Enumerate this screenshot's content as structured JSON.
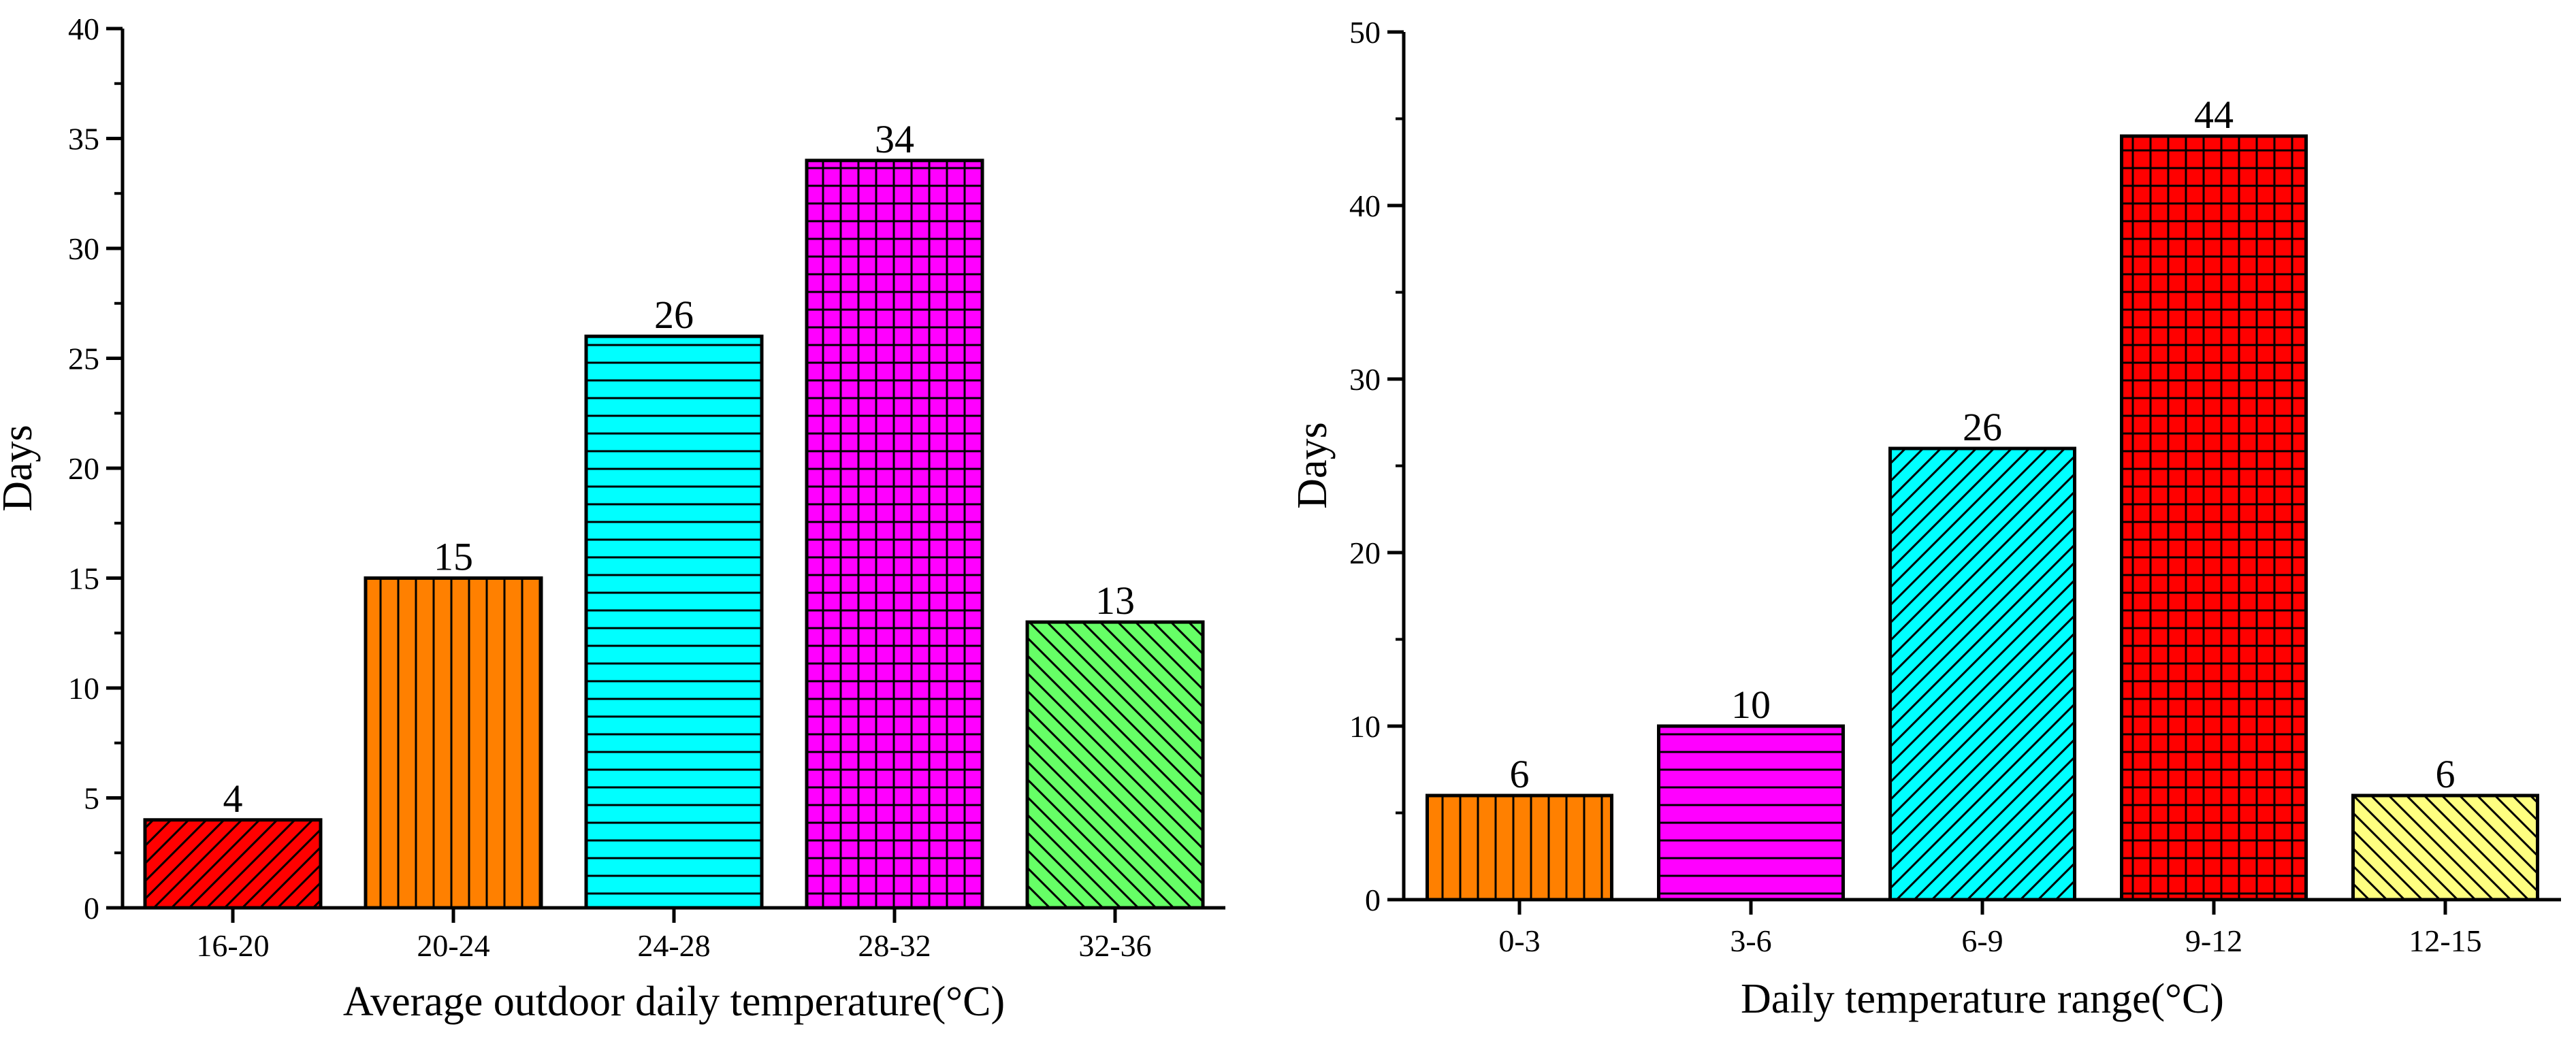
{
  "chart_data": [
    {
      "type": "bar",
      "title": "",
      "xlabel": "Average outdoor daily temperature(°C)",
      "ylabel": "Days",
      "ylim": [
        0,
        40
      ],
      "yticks": [
        0,
        5,
        10,
        15,
        20,
        25,
        30,
        35,
        40
      ],
      "grid": false,
      "categories": [
        "16-20",
        "20-24",
        "24-28",
        "28-32",
        "32-36"
      ],
      "values": [
        4,
        15,
        26,
        34,
        13
      ],
      "colors": [
        "#ff0000",
        "#ff8000",
        "#00ffff",
        "#ff00ff",
        "#66ff66"
      ],
      "patterns": [
        "diag-up",
        "vertical",
        "horizontal",
        "grid",
        "diag-down"
      ]
    },
    {
      "type": "bar",
      "title": "",
      "xlabel": "Daily temperature range(°C)",
      "ylabel": "Days",
      "ylim": [
        0,
        50
      ],
      "yticks": [
        0,
        10,
        20,
        30,
        40,
        50
      ],
      "grid": false,
      "categories": [
        "0-3",
        "3-6",
        "6-9",
        "9-12",
        "12-15"
      ],
      "values": [
        6,
        10,
        26,
        44,
        6
      ],
      "colors": [
        "#ff8000",
        "#ff00ff",
        "#00ffff",
        "#ff0000",
        "#ffff80"
      ],
      "patterns": [
        "vertical",
        "horizontal",
        "diag-up",
        "grid",
        "diag-down"
      ]
    }
  ]
}
